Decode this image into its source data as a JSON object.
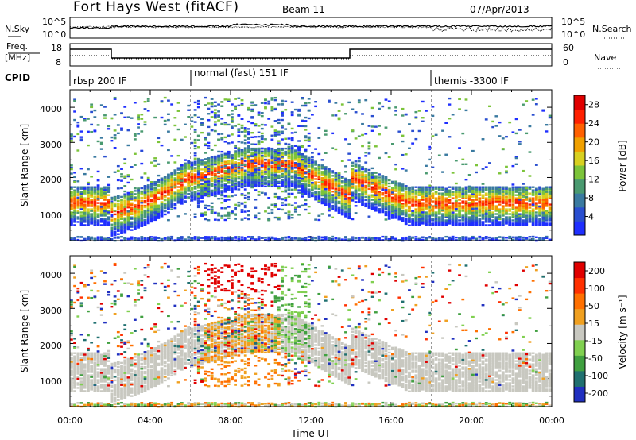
{
  "header": {
    "title": "Fort Hays West (fitACF)",
    "beam": "Beam 11",
    "date": "07/Apr/2013"
  },
  "strips": {
    "nsky_label": "N.Sky",
    "nsky_ticks": [
      "10^5",
      "10^0"
    ],
    "nsearch_label": "N.Search",
    "nsearch_ticks": [
      "10^5",
      "10^0"
    ],
    "freq_label_1": "Freq.",
    "freq_label_2": "[MHz]",
    "freq_ticks": [
      "18",
      "8"
    ],
    "nave_label": "Nave",
    "nave_ticks": [
      "60",
      "0"
    ],
    "cpid_label": "CPID",
    "cpid_segments": [
      {
        "label": "rbsp 200 IF",
        "start_h": 0.0
      },
      {
        "label": "normal (fast) 151 IF",
        "start_h": 6.0
      },
      {
        "label": "themis -3300 IF",
        "start_h": 18.0
      }
    ]
  },
  "chart_data": [
    {
      "type": "heatmap",
      "name": "power",
      "ylabel": "Slant Range [km]",
      "xlabel": "Time UT",
      "x_ticks": [
        "00:00",
        "04:00",
        "08:00",
        "12:00",
        "16:00",
        "20:00",
        "00:00"
      ],
      "y_ticks": [
        "1000",
        "2000",
        "3000",
        "4000"
      ],
      "xlim_hours": [
        0,
        24
      ],
      "ylim_km": [
        200,
        4500
      ],
      "colorbar_label": "Power [dB]",
      "colorbar_ticks": [
        "4",
        "8",
        "12",
        "16",
        "20",
        "24",
        "28"
      ],
      "colorbar_range": [
        0,
        30
      ],
      "colors": [
        "#1f2fff",
        "#2a4fd0",
        "#3a7aa0",
        "#4a9a70",
        "#7cc43a",
        "#d8d020",
        "#f0a000",
        "#ff6000",
        "#ff2000",
        "#e00000"
      ]
    },
    {
      "type": "heatmap",
      "name": "velocity",
      "ylabel": "Slant Range [km]",
      "xlabel": "Time UT",
      "x_ticks": [
        "00:00",
        "04:00",
        "08:00",
        "12:00",
        "16:00",
        "20:00",
        "00:00"
      ],
      "y_ticks": [
        "1000",
        "2000",
        "3000",
        "4000"
      ],
      "xlim_hours": [
        0,
        24
      ],
      "ylim_km": [
        200,
        4500
      ],
      "colorbar_label": "Velocity [m s⁻¹]",
      "colorbar_ticks": [
        "200",
        "100",
        "50",
        "15",
        "-15",
        "-50",
        "-100",
        "-200"
      ],
      "colors": [
        "#2030c0",
        "#207070",
        "#40a040",
        "#80d050",
        "#c8c8c0",
        "#f0a020",
        "#ff7000",
        "#ff3000",
        "#e00000"
      ]
    }
  ]
}
